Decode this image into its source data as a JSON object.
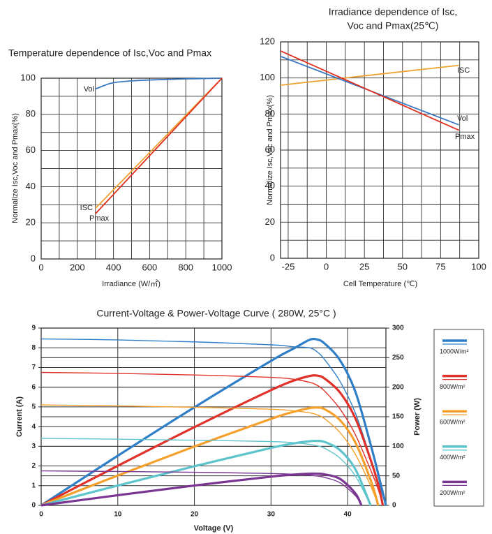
{
  "chart_data": [
    {
      "type": "line",
      "title": [
        "Temperature dependence of Isc,Voc and Pmax"
      ],
      "x_label": "Irradiance (W/㎡)",
      "y_label": "Normalize Isc,Voc and Pmax(%)",
      "xlim": [
        0,
        1000
      ],
      "xticks": [
        0,
        200,
        400,
        600,
        800,
        1000
      ],
      "ylim": [
        0,
        100
      ],
      "yticks": [
        0,
        20,
        40,
        60,
        80,
        100
      ],
      "grid": true,
      "series": [
        {
          "name": "Vol",
          "color": "#3a78c2",
          "x": [
            300,
            350,
            400,
            500,
            600,
            700,
            800,
            900,
            1000
          ],
          "values": [
            94,
            96,
            97.5,
            98.5,
            99,
            99.3,
            99.6,
            99.8,
            100
          ]
        },
        {
          "name": "ISC",
          "color": "#f0a030",
          "x": [
            300,
            1000
          ],
          "values": [
            28,
            100
          ]
        },
        {
          "name": "Pmax",
          "color": "#e03020",
          "x": [
            300,
            1000
          ],
          "values": [
            25,
            100
          ]
        }
      ]
    },
    {
      "type": "line",
      "title": [
        "Irradiance dependence of Isc,",
        "Voc and Pmax(25℃)"
      ],
      "x_label": "Cell Temperature (℃)",
      "y_label": "Normalize Isc,Voc and Pmax(%)",
      "xlim": [
        -30,
        100
      ],
      "xticks": [
        -25,
        0,
        25,
        50,
        75,
        100
      ],
      "ylim": [
        0,
        120
      ],
      "yticks": [
        0,
        20,
        40,
        60,
        80,
        100,
        120
      ],
      "grid": true,
      "series": [
        {
          "name": "ISC",
          "color": "#f0a030",
          "x": [
            -30,
            87
          ],
          "values": [
            96,
            107
          ]
        },
        {
          "name": "Vol",
          "color": "#3a78c2",
          "x": [
            -30,
            87
          ],
          "values": [
            112,
            74
          ]
        },
        {
          "name": "Pmax",
          "color": "#e03020",
          "x": [
            -30,
            87
          ],
          "values": [
            115,
            71
          ]
        }
      ]
    },
    {
      "type": "line",
      "title": [
        "Current-Voltage & Power-Voltage Curve ( 280W, 25°C )"
      ],
      "x_label": "Voltage (V)",
      "y_label": "Current (A)",
      "y2_label": "Power (W)",
      "xlim": [
        0,
        45
      ],
      "xticks": [
        0,
        10,
        20,
        30,
        40
      ],
      "ylim": [
        0,
        9
      ],
      "yticks": [
        0,
        1,
        2,
        3,
        4,
        5,
        6,
        7,
        8,
        9
      ],
      "y2lim": [
        0,
        300
      ],
      "y2ticks": [
        0,
        50,
        100,
        150,
        200,
        250,
        300
      ],
      "grid": true,
      "series": [
        {
          "name": "1000W/m²",
          "color": "#2f7fc8",
          "x": [
            0,
            10,
            20,
            30,
            33,
            35,
            36,
            37,
            39,
            41,
            43,
            44,
            45
          ],
          "values": [
            8.45,
            8.4,
            8.3,
            8.15,
            8.05,
            8.0,
            7.8,
            7.4,
            6.3,
            4.7,
            2.4,
            1.2,
            0
          ],
          "power": [
            0,
            84,
            166,
            244.5,
            265.7,
            280,
            280.8,
            273.8,
            245.7,
            192.7,
            103.2,
            52.8,
            0
          ]
        },
        {
          "name": "800W/m²",
          "color": "#e0322a",
          "x": [
            0,
            10,
            20,
            30,
            33,
            35,
            36,
            37,
            39,
            41,
            43,
            44,
            44.6
          ],
          "values": [
            6.75,
            6.7,
            6.62,
            6.5,
            6.4,
            6.25,
            6.1,
            5.8,
            4.9,
            3.6,
            1.8,
            0.8,
            0
          ],
          "power": [
            0,
            67,
            132.4,
            195,
            211.2,
            218.8,
            219.6,
            214.6,
            191.1,
            147.6,
            77.4,
            35.2,
            0
          ]
        },
        {
          "name": "600W/m²",
          "color": "#f5a02a",
          "x": [
            0,
            10,
            20,
            30,
            33,
            35,
            36,
            37,
            39,
            41,
            43,
            44
          ],
          "values": [
            5.1,
            5.05,
            4.98,
            4.88,
            4.8,
            4.7,
            4.6,
            4.4,
            3.7,
            2.6,
            1.0,
            0
          ],
          "power": [
            0,
            50.5,
            99.6,
            146.4,
            158.4,
            164.5,
            165.6,
            162.8,
            144.3,
            106.6,
            43,
            0
          ]
        },
        {
          "name": "400W/m²",
          "color": "#5ec4cc",
          "x": [
            0,
            10,
            20,
            30,
            33,
            35,
            36,
            37,
            39,
            41,
            43
          ],
          "values": [
            3.4,
            3.36,
            3.31,
            3.24,
            3.18,
            3.1,
            3.03,
            2.9,
            2.4,
            1.5,
            0
          ],
          "power": [
            0,
            33.6,
            66.2,
            97.2,
            104.9,
            108.5,
            109.1,
            107.3,
            93.6,
            61.5,
            0
          ]
        },
        {
          "name": "200W/m²",
          "color": "#7a3592",
          "x": [
            0,
            10,
            20,
            30,
            33,
            35,
            36,
            37,
            39,
            41,
            41.8
          ],
          "values": [
            1.75,
            1.72,
            1.68,
            1.62,
            1.58,
            1.53,
            1.49,
            1.42,
            1.15,
            0.5,
            0
          ],
          "power": [
            0,
            17.2,
            33.6,
            48.6,
            52.1,
            53.6,
            53.6,
            52.5,
            44.9,
            20.5,
            0
          ]
        }
      ]
    }
  ]
}
